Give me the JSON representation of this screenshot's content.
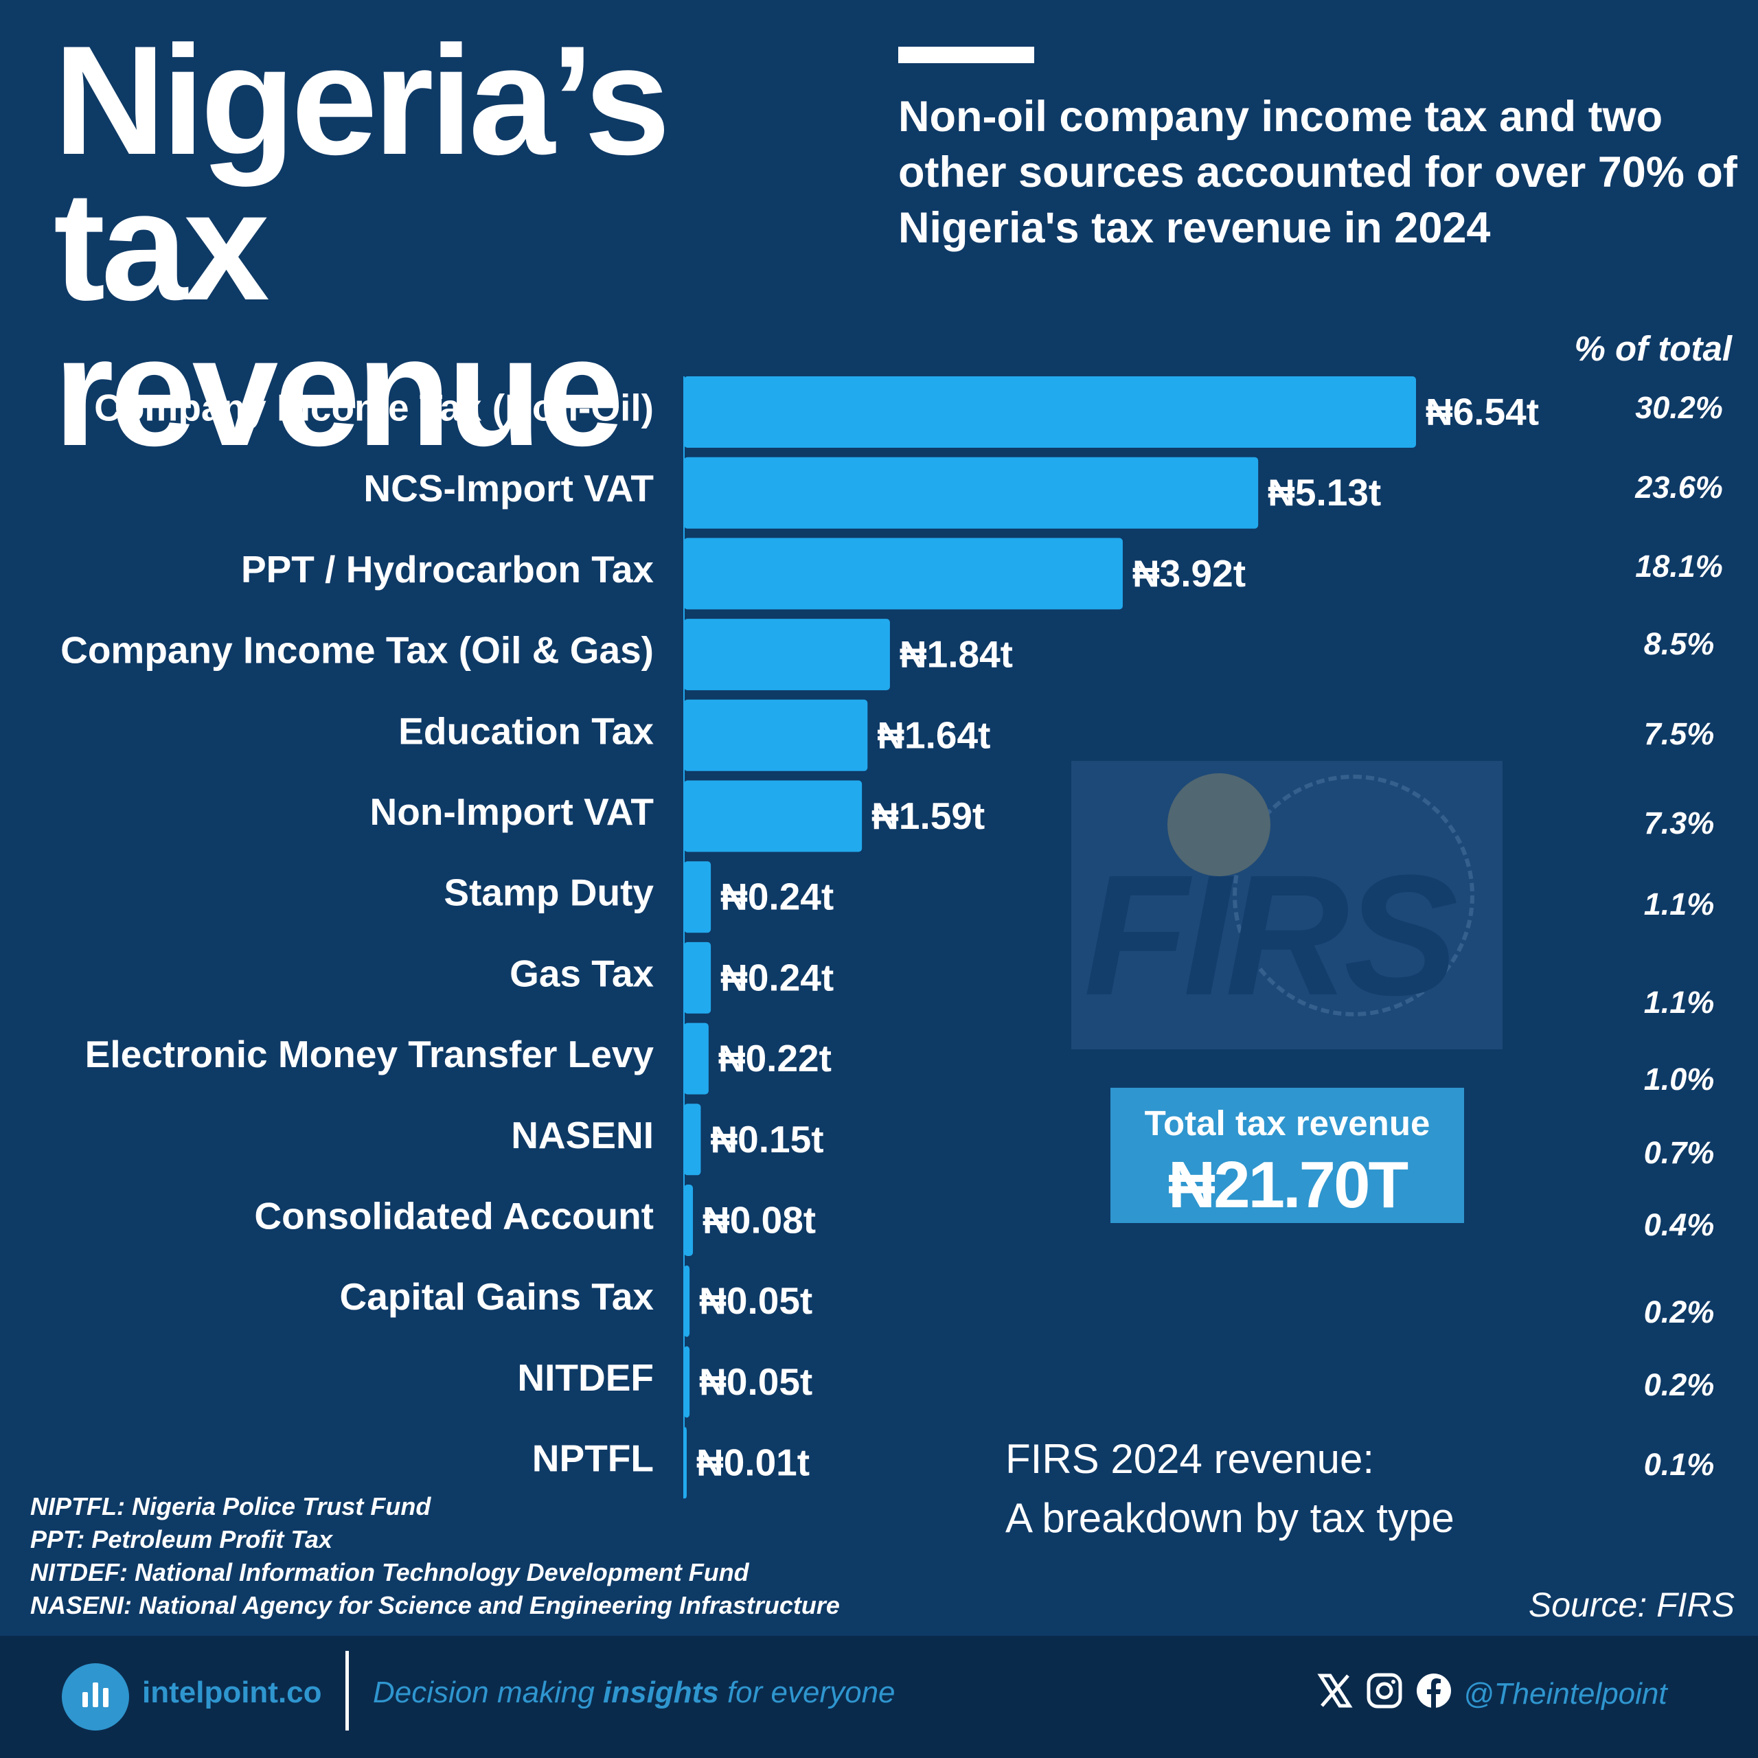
{
  "title": {
    "line1": "Nigeria’s",
    "line2": "tax revenue"
  },
  "subtitle": "Non-oil company income tax and two other sources accounted for over 70% of Nigeria's tax revenue in 2024",
  "pct_header": "% of total",
  "chart_data": {
    "type": "bar",
    "orientation": "horizontal",
    "categories": [
      "Company Income Tax (Non-Oil)",
      "NCS-Import VAT",
      "PPT / Hydrocarbon Tax",
      "Company Income Tax (Oil & Gas)",
      "Education Tax",
      "Non-Import VAT",
      "Stamp Duty",
      "Gas Tax",
      "Electronic Money Transfer Levy",
      "NASENI",
      "Consolidated Account",
      "Capital Gains Tax",
      "NITDEF",
      "NPTFL"
    ],
    "values": [
      6.54,
      5.13,
      3.92,
      1.84,
      1.64,
      1.59,
      0.24,
      0.24,
      0.22,
      0.15,
      0.08,
      0.05,
      0.05,
      0.01
    ],
    "value_labels": [
      "₦6.54t",
      "₦5.13t",
      "₦3.92t",
      "₦1.84t",
      "₦1.64t",
      "₦1.59t",
      "₦0.24t",
      "₦0.24t",
      "₦0.22t",
      "₦0.15t",
      "₦0.08t",
      "₦0.05t",
      "₦0.05t",
      "₦0.01t"
    ],
    "percent_labels": [
      "30.2%",
      "23.6%",
      "18.1%",
      "8.5%",
      "7.5%",
      "7.3%",
      "1.1%",
      "1.1%",
      "1.0%",
      "0.7%",
      "0.4%",
      "0.2%",
      "0.2%",
      "0.1%"
    ],
    "bar_color": "#22aaee",
    "grid": false,
    "legend": false
  },
  "seal": {
    "text": "FIRS"
  },
  "total": {
    "label": "Total tax revenue",
    "value": "₦21.70T"
  },
  "caption": {
    "line1": "FIRS 2024 revenue:",
    "line2": "A breakdown by tax type"
  },
  "source": "Source: FIRS",
  "glossary": [
    "NIPTFL: Nigeria Police Trust Fund",
    "PPT: Petroleum Profit Tax",
    "NITDEF: National Information Technology Development Fund",
    "NASENI: National Agency for Science and Engineering Infrastructure"
  ],
  "footer": {
    "brand": "intelpoint.co",
    "tagline_pre": "Decision making ",
    "tagline_bold": "insights",
    "tagline_post": " for everyone",
    "handle": "@Theintelpoint",
    "icons": [
      "x-icon",
      "instagram-icon",
      "facebook-icon"
    ]
  },
  "colors": {
    "background": "#0e3a66",
    "footer": "#0a2a4c",
    "accent": "#2f96cf",
    "bar": "#22aaee"
  }
}
